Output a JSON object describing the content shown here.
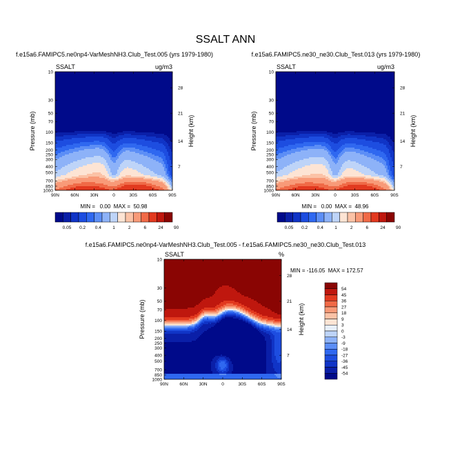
{
  "title": "SSALT ANN",
  "colors": {
    "abs_palette": [
      "#000a8a",
      "#0a1fa8",
      "#1034c6",
      "#1d4de0",
      "#2f68f0",
      "#5c8ef6",
      "#8db2f8",
      "#bed4f8",
      "#fde4d4",
      "#fbc2a6",
      "#f89a78",
      "#f06a47",
      "#e2391f",
      "#bf170e",
      "#8a0503"
    ],
    "diff_palette": [
      "#000a8a",
      "#0a1fa8",
      "#1034c6",
      "#1d4de0",
      "#2f68f0",
      "#5c8ef6",
      "#8db2f8",
      "#bed4f8",
      "#e8f0fb",
      "#fde4d4",
      "#fbc2a6",
      "#f89a78",
      "#f06a47",
      "#e2391f",
      "#bf170e",
      "#8a0503"
    ]
  },
  "chart_data": [
    {
      "type": "heatmap",
      "title": "f.e15a6.FAMIPC5.ne0np4-VarMeshNH3.Club_Test.005 (yrs 1979-1980)",
      "corner_left": "SSALT",
      "corner_right": "ug/m3",
      "ylabel": "Pressure (mb)",
      "ylabel_right": "Height (km)",
      "x_ticks": [
        "90N",
        "60N",
        "30N",
        "0",
        "30S",
        "60S",
        "90S"
      ],
      "y_ticks": [
        "10",
        "30",
        "50",
        "70",
        "100",
        "150",
        "200",
        "250",
        "300",
        "400",
        "500",
        "700",
        "850",
        "1000"
      ],
      "y_ticks_right": [
        "28",
        "21",
        "14",
        "7"
      ],
      "stats": "MIN =   0.00  MAX =  50.98",
      "colorbar_labels": [
        "0.05",
        "0.2",
        "0.4",
        "1",
        "2",
        "6",
        "24",
        "90"
      ],
      "min": 0.0,
      "max": 50.98
    },
    {
      "type": "heatmap",
      "title": "f.e15a6.FAMIPC5.ne30_ne30.Club_Test.013 (yrs 1979-1980)",
      "corner_left": "SSALT",
      "corner_right": "ug/m3",
      "ylabel": "Pressure (mb)",
      "ylabel_right": "Height (km)",
      "x_ticks": [
        "90N",
        "60N",
        "30N",
        "0",
        "30S",
        "60S",
        "90S"
      ],
      "y_ticks": [
        "10",
        "30",
        "50",
        "70",
        "100",
        "150",
        "200",
        "250",
        "300",
        "400",
        "500",
        "700",
        "850",
        "1000"
      ],
      "y_ticks_right": [
        "28",
        "21",
        "14",
        "7"
      ],
      "stats": "MIN =   0.00  MAX =  48.96",
      "colorbar_labels": [
        "0.05",
        "0.2",
        "0.4",
        "1",
        "2",
        "6",
        "24",
        "90"
      ],
      "min": 0.0,
      "max": 48.96
    },
    {
      "type": "heatmap",
      "title": "f.e15a6.FAMIPC5.ne0np4-VarMeshNH3.Club_Test.005 - f.e15a6.FAMIPC5.ne30_ne30.Club_Test.013",
      "corner_left": "SSALT",
      "corner_right": "%",
      "ylabel": "Pressure (mb)",
      "ylabel_right": "Height (km)",
      "x_ticks": [
        "90N",
        "60N",
        "30N",
        "0",
        "30S",
        "60S",
        "90S"
      ],
      "y_ticks": [
        "10",
        "30",
        "50",
        "70",
        "100",
        "150",
        "200",
        "250",
        "300",
        "400",
        "500",
        "700",
        "850",
        "1000"
      ],
      "y_ticks_right": [
        "28",
        "21",
        "14",
        "7"
      ],
      "stats": "MIN = -116.05  MAX = 172.57",
      "colorbar_labels": [
        "54",
        "45",
        "36",
        "27",
        "18",
        "9",
        "3",
        "0",
        "-3",
        "-9",
        "-18",
        "-27",
        "-36",
        "-45",
        "-54"
      ],
      "min": -116.05,
      "max": 172.57
    }
  ]
}
